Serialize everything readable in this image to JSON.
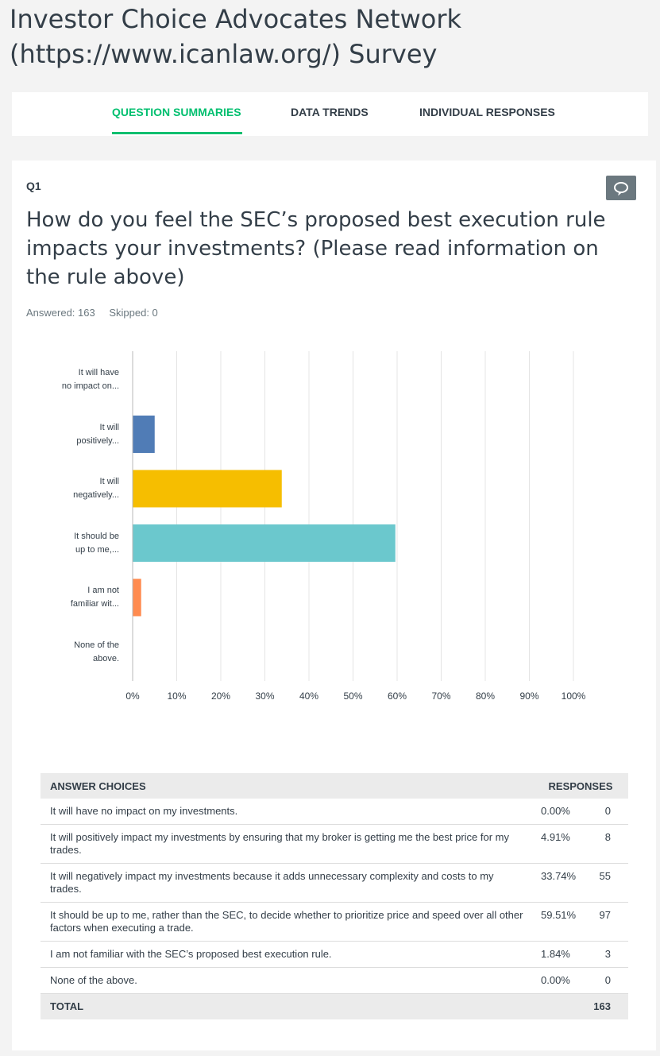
{
  "page": {
    "title": "Investor Choice Advocates Network (https://www.icanlaw.org/) Survey"
  },
  "tabs": [
    {
      "label": "QUESTION SUMMARIES",
      "active": true
    },
    {
      "label": "DATA TRENDS",
      "active": false
    },
    {
      "label": "INDIVIDUAL RESPONSES",
      "active": false
    }
  ],
  "question": {
    "number": "Q1",
    "text": "How do you feel the SEC’s proposed best execution rule impacts your investments? (Please read information on the rule above)",
    "answered": "Answered: 163",
    "skipped": "Skipped: 0",
    "comment_icon": "speech-bubble-icon"
  },
  "chart_data": {
    "type": "bar",
    "orientation": "horizontal",
    "categories": [
      "It will have no impact on...",
      "It will positively...",
      "It will negatively...",
      "It should be up to me,...",
      "I am not familiar wit...",
      "None of the above."
    ],
    "category_lines": [
      [
        "It will have",
        "no impact on..."
      ],
      [
        "It will",
        "positively..."
      ],
      [
        "It will",
        "negatively..."
      ],
      [
        "It should be",
        "up to me,..."
      ],
      [
        "I am not",
        "familiar wit..."
      ],
      [
        "None of the",
        "above."
      ]
    ],
    "values": [
      0.0,
      4.91,
      33.74,
      59.51,
      1.84,
      0.0
    ],
    "colors": [
      "#5b9bd5",
      "#507cb6",
      "#f6be00",
      "#6bc8cd",
      "#ff8b4f",
      "#7d8fb1"
    ],
    "xlim": [
      0,
      100
    ],
    "xticks": [
      "0%",
      "10%",
      "20%",
      "30%",
      "40%",
      "50%",
      "60%",
      "70%",
      "80%",
      "90%",
      "100%"
    ],
    "grid": true
  },
  "table": {
    "headers": {
      "choices": "ANSWER CHOICES",
      "responses": "RESPONSES"
    },
    "rows": [
      {
        "choice": "It will have no impact on my investments.",
        "percent": "0.00%",
        "count": "0"
      },
      {
        "choice": "It will positively impact my investments by ensuring that my broker is getting me the best price for my trades.",
        "percent": "4.91%",
        "count": "8"
      },
      {
        "choice": "It will negatively impact my investments because it adds unnecessary complexity and costs to my trades.",
        "percent": "33.74%",
        "count": "55"
      },
      {
        "choice": "It should be up to me, rather than the SEC, to decide whether to prioritize price and speed over all other factors when executing a trade.",
        "percent": "59.51%",
        "count": "97"
      },
      {
        "choice": "I am not familiar with the SEC’s proposed best execution rule.",
        "percent": "1.84%",
        "count": "3"
      },
      {
        "choice": "None of the above.",
        "percent": "0.00%",
        "count": "0"
      }
    ],
    "total_label": "TOTAL",
    "total_count": "163"
  }
}
